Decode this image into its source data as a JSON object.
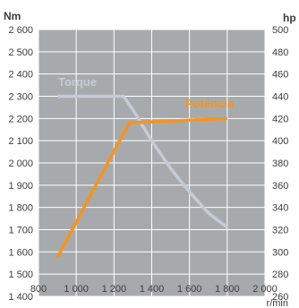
{
  "chart_data": {
    "type": "line",
    "left_axis": {
      "unit": "Nm",
      "range": [
        1400,
        2600
      ],
      "ticks": [
        2600,
        2500,
        2400,
        2300,
        2200,
        2100,
        2000,
        1900,
        1800,
        1700,
        1600,
        1500,
        1400
      ],
      "tick_labels": [
        "2 600",
        "2 500",
        "2 400",
        "2 300",
        "2 200",
        "2 100",
        "2 000",
        "1 900",
        "1 800",
        "1 700",
        "1 600",
        "1 500",
        "1 400"
      ]
    },
    "right_axis": {
      "unit": "hp",
      "range": [
        260,
        500
      ],
      "ticks": [
        500,
        480,
        460,
        440,
        420,
        400,
        380,
        360,
        340,
        320,
        300,
        280,
        260
      ],
      "tick_labels": [
        "500",
        "480",
        "460",
        "440",
        "420",
        "400",
        "380",
        "360",
        "340",
        "320",
        "300",
        "280",
        "260"
      ]
    },
    "x_axis": {
      "unit": "r/min",
      "range": [
        800,
        2000
      ],
      "ticks": [
        800,
        1000,
        1200,
        1400,
        1600,
        1800,
        2000
      ],
      "tick_labels": [
        "800",
        "1 000",
        "1 200",
        "1 400",
        "1 600",
        "1 800",
        "2 000"
      ]
    },
    "grid": true,
    "plot_background": "#a7aaad",
    "grid_color": "#ffffff",
    "series": [
      {
        "name": "Torque",
        "axis": "left",
        "color": "#c5ccd6",
        "points": [
          {
            "x": 900,
            "y": 2300
          },
          {
            "x": 1250,
            "y": 2300
          },
          {
            "x": 1300,
            "y": 2240
          },
          {
            "x": 1400,
            "y": 2100
          },
          {
            "x": 1500,
            "y": 1975
          },
          {
            "x": 1600,
            "y": 1870
          },
          {
            "x": 1700,
            "y": 1775
          },
          {
            "x": 1800,
            "y": 1710
          }
        ]
      },
      {
        "name": "Potência",
        "axis": "right",
        "color": "#f7941d",
        "points": [
          {
            "x": 900,
            "y": 295
          },
          {
            "x": 1280,
            "y": 416
          },
          {
            "x": 1800,
            "y": 420
          }
        ]
      }
    ]
  }
}
